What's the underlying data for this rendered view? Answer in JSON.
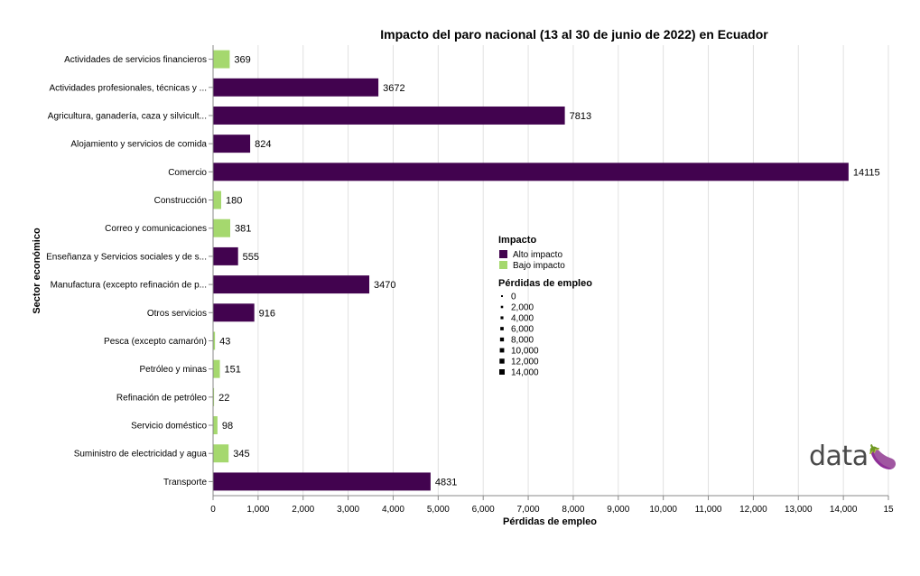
{
  "chart_data": {
    "type": "bar",
    "orientation": "horizontal",
    "title": "Impacto del paro nacional (13 al 30 de junio de 2022) en Ecuador",
    "xlabel": "Pérdidas de empleo",
    "ylabel": "Sector económico",
    "xlim": [
      0,
      15000
    ],
    "x_ticks": [
      "0",
      "1,000",
      "2,000",
      "3,000",
      "4,000",
      "5,000",
      "6,000",
      "7,000",
      "8,000",
      "9,000",
      "10,000",
      "11,000",
      "12,000",
      "13,000",
      "14,000",
      "15"
    ],
    "grid": true,
    "legend_position": "right",
    "categories": [
      "Actividades de servicios financieros",
      "Actividades profesionales, técnicas y ...",
      "Agricultura, ganadería, caza y silvicult...",
      "Alojamiento y servicios de comida",
      "Comercio",
      "Construcción",
      "Correo y comunicaciones",
      "Enseñanza y Servicios sociales y de s...",
      "Manufactura (excepto refinación de p...",
      "Otros servicios",
      "Pesca (excepto camarón)",
      "Petróleo y minas",
      "Refinación de petróleo",
      "Servicio doméstico",
      "Suministro de electricidad y agua",
      "Transporte"
    ],
    "values": [
      369,
      3672,
      7813,
      824,
      14115,
      180,
      381,
      555,
      3470,
      916,
      43,
      151,
      22,
      98,
      345,
      4831
    ],
    "value_labels": [
      "369",
      "3672",
      "7813",
      "824",
      "14115",
      "180",
      "381",
      "555",
      "3470",
      "916",
      "43",
      "151",
      "22",
      "98",
      "345",
      "4831"
    ],
    "impact": [
      "Bajo impacto",
      "Alto impacto",
      "Alto impacto",
      "Alto impacto",
      "Alto impacto",
      "Bajo impacto",
      "Bajo impacto",
      "Alto impacto",
      "Alto impacto",
      "Alto impacto",
      "Bajo impacto",
      "Bajo impacto",
      "Bajo impacto",
      "Bajo impacto",
      "Bajo impacto",
      "Alto impacto"
    ],
    "colors": {
      "Alto impacto": "#42034f",
      "Bajo impacto": "#a5d86e"
    },
    "legend_color": {
      "title": "Impacto",
      "entries": [
        "Alto impacto",
        "Bajo impacto"
      ]
    },
    "legend_size": {
      "title": "Pérdidas de empleo",
      "entries": [
        "0",
        "2,000",
        "4,000",
        "6,000",
        "8,000",
        "10,000",
        "12,000",
        "14,000"
      ],
      "values": [
        0,
        2000,
        4000,
        6000,
        8000,
        10000,
        12000,
        14000
      ]
    }
  },
  "brand": {
    "text": "data",
    "icon": "eggplant-icon"
  }
}
